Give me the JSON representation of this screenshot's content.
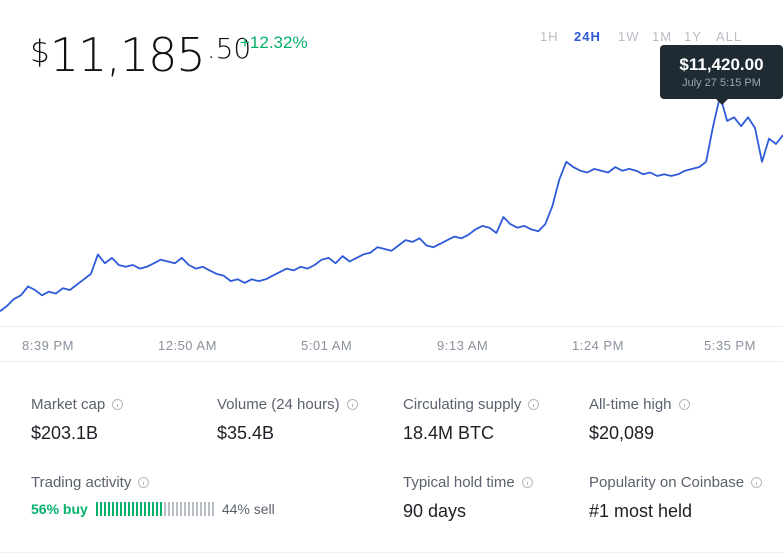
{
  "price": {
    "symbol": "$",
    "whole": "11,185",
    "cents": ".50",
    "change": "+12.32%"
  },
  "time_ranges": [
    {
      "label": "1H",
      "active": false
    },
    {
      "label": "24H",
      "active": true
    },
    {
      "label": "1W",
      "active": false
    },
    {
      "label": "1M",
      "active": false
    },
    {
      "label": "1Y",
      "active": false
    },
    {
      "label": "ALL",
      "active": false
    }
  ],
  "tooltip": {
    "value": "$11,420.00",
    "time": "July 27 5:15 PM"
  },
  "chart_data": {
    "type": "line",
    "series": [
      {
        "color": "#2e5bd8",
        "values": [
          10210,
          10240,
          10280,
          10300,
          10350,
          10330,
          10300,
          10320,
          10310,
          10340,
          10330,
          10360,
          10390,
          10420,
          10530,
          10480,
          10510,
          10470,
          10460,
          10470,
          10450,
          10460,
          10480,
          10500,
          10490,
          10480,
          10510,
          10470,
          10450,
          10460,
          10440,
          10420,
          10410,
          10380,
          10390,
          10370,
          10390,
          10380,
          10390,
          10410,
          10430,
          10450,
          10440,
          10460,
          10450,
          10470,
          10500,
          10510,
          10480,
          10520,
          10490,
          10510,
          10530,
          10540,
          10570,
          10560,
          10550,
          10580,
          10610,
          10600,
          10620,
          10580,
          10570,
          10590,
          10610,
          10630,
          10620,
          10640,
          10670,
          10690,
          10680,
          10650,
          10740,
          10700,
          10680,
          10690,
          10670,
          10660,
          10700,
          10800,
          10950,
          11050,
          11020,
          11000,
          10990,
          11010,
          11000,
          10990,
          11020,
          11000,
          11010,
          11000,
          10980,
          10990,
          10970,
          10980,
          10970,
          10980,
          11000,
          11010,
          11020,
          11050,
          11250,
          11420,
          11280,
          11300,
          11250,
          11300,
          11240,
          11050,
          11180,
          11150,
          11200
        ]
      }
    ],
    "x_tick_labels": [
      "8:39 PM",
      "12:50 AM",
      "5:01 AM",
      "9:13 AM",
      "1:24 PM",
      "5:35 PM"
    ],
    "highlight": {
      "index": 103,
      "value": 11420
    },
    "ylim": [
      10150,
      11650
    ],
    "grid": false
  },
  "stats": [
    {
      "label": "Market cap",
      "value": "$203.1B"
    },
    {
      "label": "Volume (24 hours)",
      "value": "$35.4B"
    },
    {
      "label": "Circulating supply",
      "value": "18.4M BTC"
    },
    {
      "label": "All-time high",
      "value": "$20,089"
    }
  ],
  "trading": {
    "label": "Trading activity",
    "buy_text": "56% buy",
    "sell_text": "44% sell",
    "buy_fraction": 0.56
  },
  "stats2": [
    {
      "label": "Typical hold time",
      "value": "90 days"
    },
    {
      "label": "Popularity on Coinbase",
      "value": "#1 most held"
    }
  ],
  "colors": {
    "accent": "#2e5bd8",
    "positive": "#05b169",
    "tooltip_bg": "#1e2b33"
  }
}
